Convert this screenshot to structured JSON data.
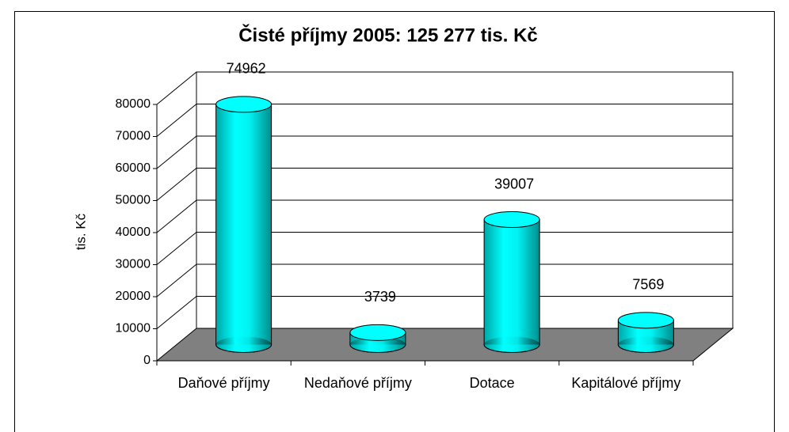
{
  "chart_data": {
    "type": "bar",
    "title": "Čisté příjmy 2005: 125 277  tis. Kč",
    "y_label": "tis. Kč",
    "categories": [
      "Daňové příjmy",
      "Nedaňové příjmy",
      "Dotace",
      "Kapitálové příjmy"
    ],
    "values": [
      74962,
      3739,
      39007,
      7569
    ],
    "color": "#00ffff",
    "ylim": [
      0,
      80000
    ],
    "yticks": [
      0,
      10000,
      20000,
      30000,
      40000,
      50000,
      60000,
      70000,
      80000
    ],
    "grid": true
  }
}
